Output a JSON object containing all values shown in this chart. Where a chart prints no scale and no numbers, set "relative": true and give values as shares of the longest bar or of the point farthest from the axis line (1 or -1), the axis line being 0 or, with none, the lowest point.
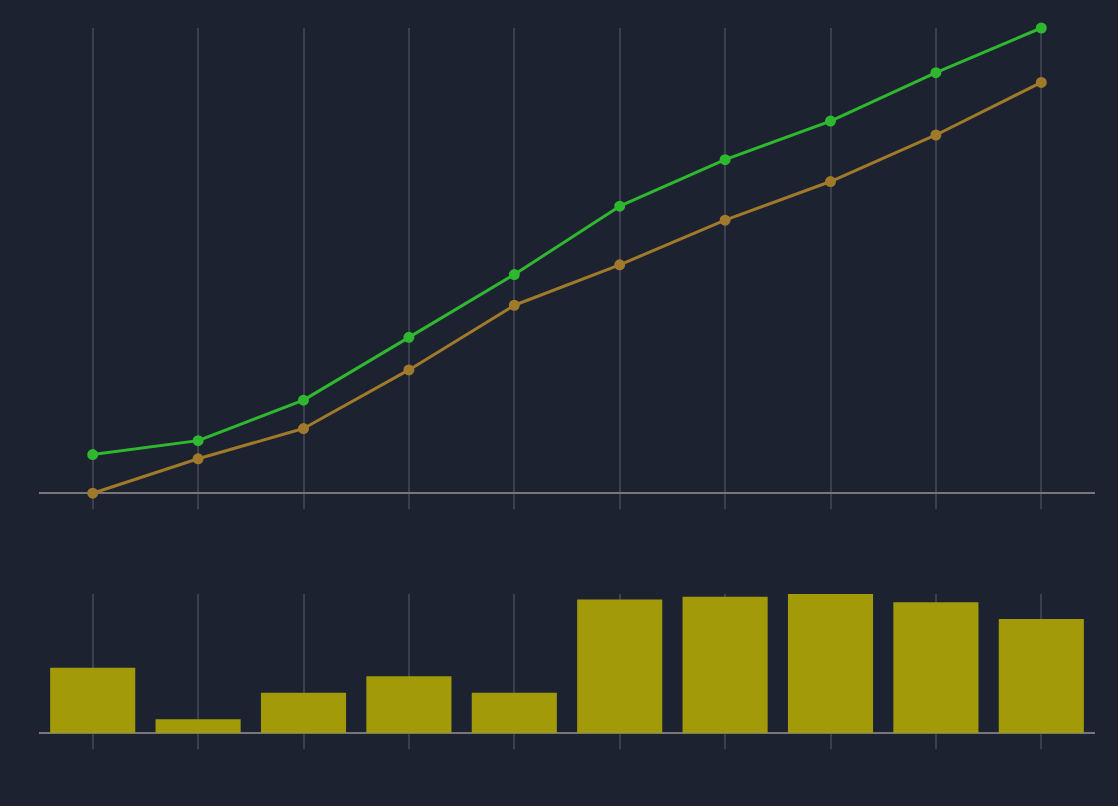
{
  "chart_data": [
    {
      "type": "line",
      "relative": true,
      "categories": [
        null,
        null,
        null,
        null,
        null,
        null,
        null,
        null,
        null,
        null
      ],
      "marker": "circle",
      "grid": "x",
      "legend": false,
      "series": [
        {
          "color": "#2fb82f",
          "values": [
            0.083,
            0.113,
            0.2,
            0.335,
            0.47,
            0.617,
            0.717,
            0.8,
            0.904,
            1
          ]
        },
        {
          "color": "#a07a2a",
          "values": [
            0,
            0.074,
            0.139,
            0.265,
            0.404,
            0.491,
            0.587,
            0.67,
            0.77,
            0.883
          ]
        }
      ]
    },
    {
      "type": "bar",
      "relative": true,
      "categories": [
        null,
        null,
        null,
        null,
        null,
        null,
        null,
        null,
        null,
        null
      ],
      "grid": "x",
      "legend": false,
      "color": "#a39a0a",
      "values": [
        0.47,
        0.1,
        0.29,
        0.41,
        0.29,
        0.96,
        0.98,
        1,
        0.94,
        0.82
      ]
    }
  ]
}
